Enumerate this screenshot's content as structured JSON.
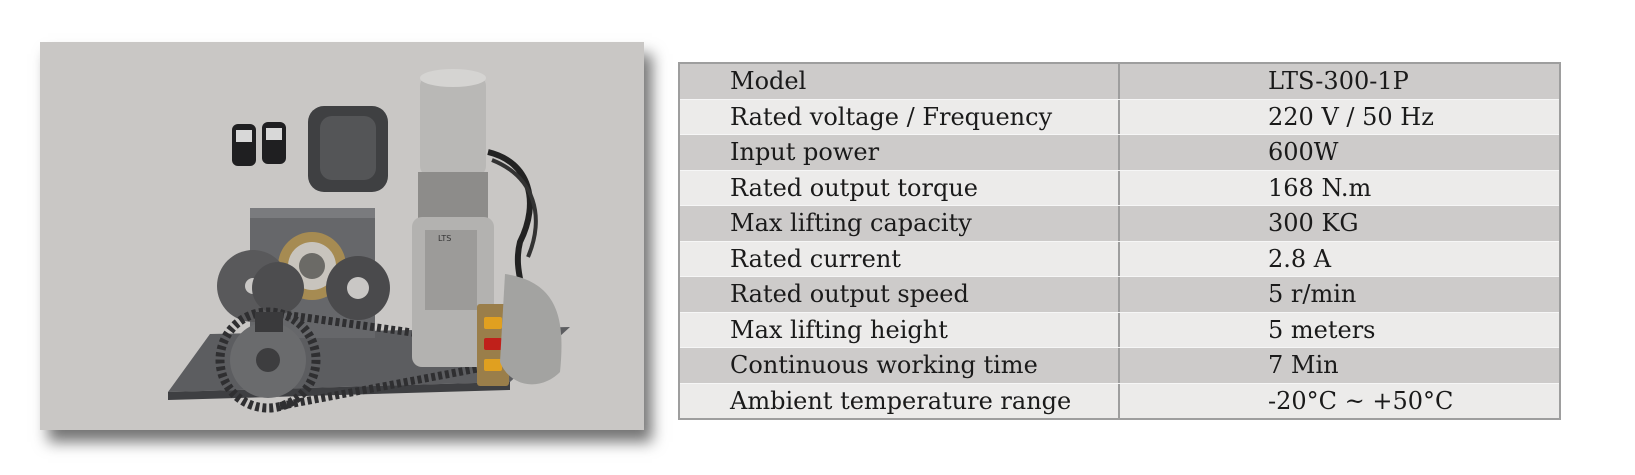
{
  "product_photo": {
    "description_icon": "roller-shutter-motor-kit-icon",
    "nameplate_text": "LTS"
  },
  "spec_table": {
    "rows": [
      {
        "label": "Model",
        "value": "LTS-300-1P"
      },
      {
        "label": "Rated voltage / Frequency",
        "value": "220 V / 50 Hz"
      },
      {
        "label": "Input power",
        "value": "600W"
      },
      {
        "label": "Rated output torque",
        "value": "168 N.m"
      },
      {
        "label": "Max lifting capacity",
        "value": "300 KG"
      },
      {
        "label": "Rated current",
        "value": "2.8 A"
      },
      {
        "label": "Rated output speed",
        "value": "5 r/min"
      },
      {
        "label": "Max lifting height",
        "value": "5 meters"
      },
      {
        "label": "Continuous working time",
        "value": "7 Min"
      },
      {
        "label": "Ambient temperature range",
        "value": "-20°C ~ +50°C"
      }
    ]
  },
  "colors": {
    "row_dark": "#cdcbca",
    "row_light": "#ecebea",
    "photo_background": "#c9c7c5",
    "table_border": "#9e9e9e"
  }
}
